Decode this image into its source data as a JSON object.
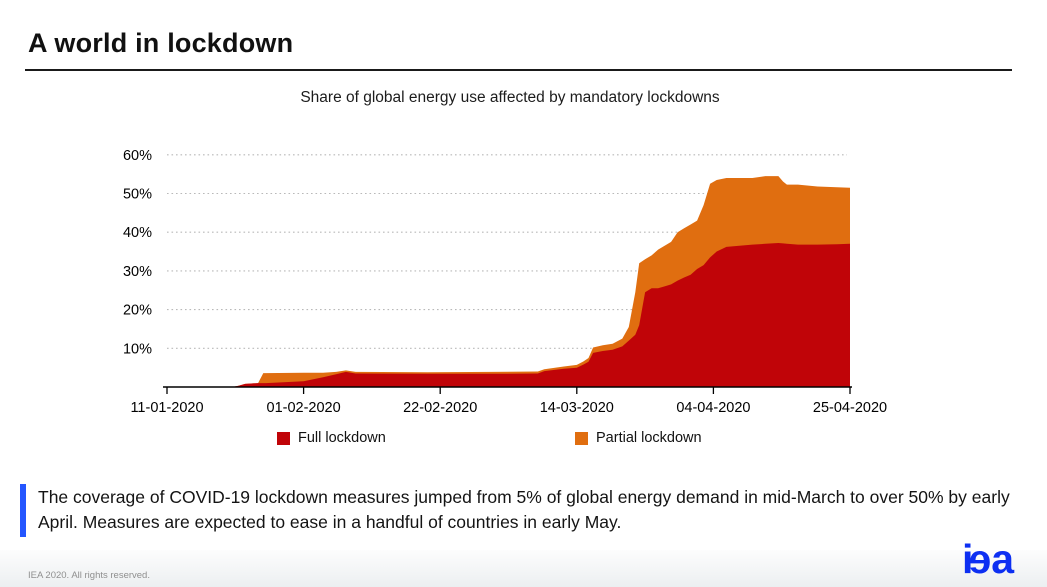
{
  "slide": {
    "title": "A world in lockdown",
    "copyright": "IEA 2020. All rights reserved.",
    "logo": {
      "text": "iea",
      "chars": [
        "i",
        "e",
        "a"
      ],
      "color": "#0d2ff2"
    }
  },
  "caption": {
    "text": "The coverage of COVID-19 lockdown measures jumped from 5% of global energy demand in mid-March to over 50% by early April. Measures are expected to ease in a handful of countries in early May.",
    "accent_color": "#2456ff"
  },
  "chart_data": {
    "type": "area",
    "stacked": true,
    "title": "Share of global energy use affected by mandatory lockdowns",
    "xlabel": "",
    "ylabel": "Share of global energy use",
    "ylim": [
      0,
      60
    ],
    "y_tick_step": 10,
    "y_tick_labels": [
      "10%",
      "20%",
      "30%",
      "40%",
      "50%",
      "60%"
    ],
    "grid": "horizontal-dotted",
    "legend_position": "bottom",
    "x_unit": "days since 11-01-2020",
    "x_range_days": [
      0,
      105
    ],
    "x_tick_days": [
      0,
      21,
      42,
      63,
      84,
      105
    ],
    "x_tick_labels": [
      "11-01-2020",
      "01-02-2020",
      "22-02-2020",
      "14-03-2020",
      "04-04-2020",
      "25-04-2020"
    ],
    "days": [
      0,
      10,
      11,
      12,
      14,
      14.8,
      15.2,
      21,
      24,
      26,
      27.5,
      29,
      40,
      50,
      57,
      58,
      61,
      63,
      64,
      64.8,
      65.5,
      67,
      68.5,
      70,
      71,
      72,
      72.6,
      73.5,
      74.5,
      75.5,
      76.5,
      77.5,
      78.5,
      79.5,
      80.5,
      81.5,
      82.5,
      83.5,
      84.5,
      86,
      88,
      90,
      92,
      94,
      94.7,
      95.3,
      97,
      100,
      103,
      105
    ],
    "series": [
      {
        "name": "Full lockdown",
        "color": "#c00408",
        "values": [
          0,
          0,
          0.3,
          0.8,
          1.0,
          1.0,
          1.0,
          1.5,
          2.5,
          3.3,
          3.9,
          3.5,
          3.4,
          3.4,
          3.5,
          4.1,
          4.7,
          5.0,
          5.8,
          6.5,
          8.8,
          9.3,
          9.6,
          10.5,
          12.0,
          13.5,
          16.0,
          24.5,
          25.5,
          25.5,
          26.0,
          26.5,
          27.5,
          28.3,
          29.0,
          30.5,
          31.5,
          33.5,
          35.0,
          36.2,
          36.5,
          36.8,
          37.0,
          37.2,
          37.1,
          37.0,
          36.8,
          36.8,
          36.9,
          37.0
        ]
      },
      {
        "name": "Partial lockdown",
        "color": "#e06e10",
        "stacked_on": "Full lockdown",
        "values": [
          0,
          0,
          0,
          0,
          0,
          2.6,
          2.6,
          2.2,
          1.2,
          0.6,
          0.4,
          0.4,
          0.4,
          0.5,
          0.5,
          0.5,
          0.6,
          0.7,
          0.8,
          1.0,
          1.4,
          1.5,
          1.6,
          2.0,
          3.5,
          11.0,
          16.0,
          8.5,
          8.5,
          10.0,
          10.5,
          11.0,
          12.5,
          12.7,
          13.0,
          12.5,
          15.5,
          19.0,
          18.5,
          17.8,
          17.5,
          17.2,
          17.5,
          17.3,
          16.0,
          15.3,
          15.5,
          15.0,
          14.7,
          14.5
        ]
      }
    ]
  }
}
